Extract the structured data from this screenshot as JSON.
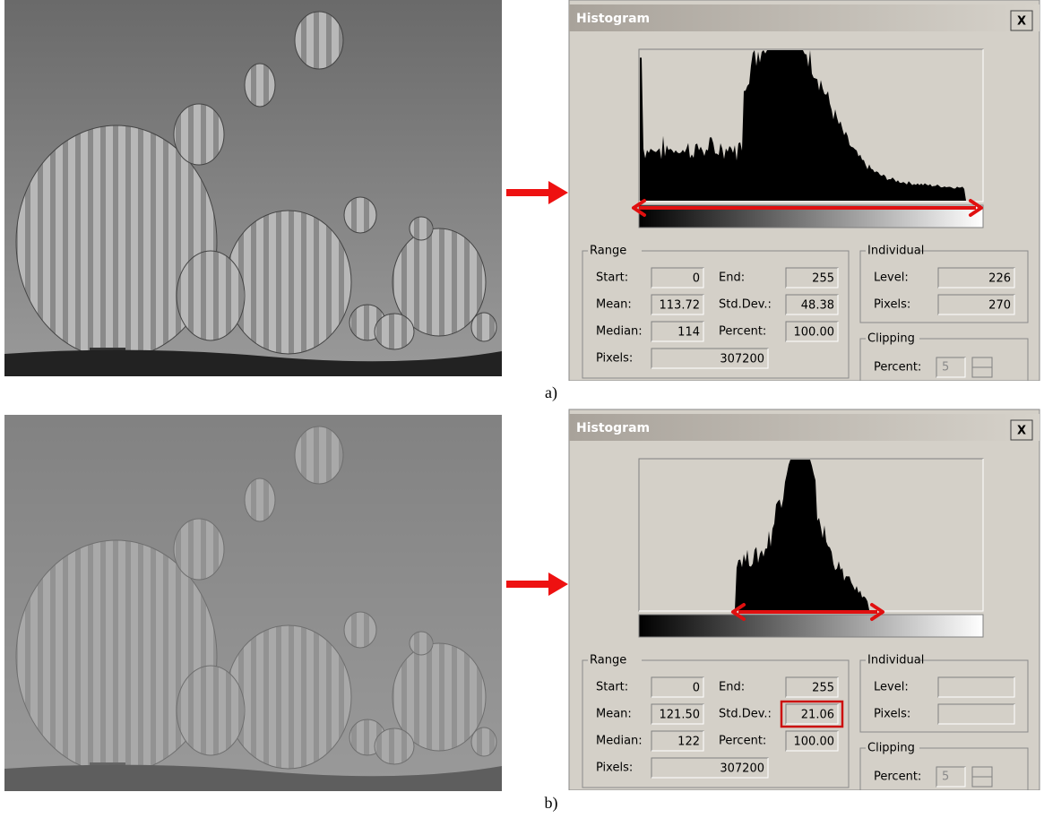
{
  "panels": [
    {
      "label": "a)",
      "dialog": {
        "title": "Histogram",
        "close": "X",
        "range": {
          "title": "Range",
          "fields": [
            {
              "label": "Start:",
              "value": "0"
            },
            {
              "label": "End:",
              "value": "255"
            },
            {
              "label": "Mean:",
              "value": "113.72"
            },
            {
              "label": "Std.Dev.:",
              "value": "48.38"
            },
            {
              "label": "Median:",
              "value": "114"
            },
            {
              "label": "Percent:",
              "value": "100.00"
            },
            {
              "label": "Pixels:",
              "value": "307200"
            }
          ]
        },
        "individual": {
          "title": "Individual",
          "fields": [
            {
              "label": "Level:",
              "value": "226"
            },
            {
              "label": "Pixels:",
              "value": "270"
            }
          ]
        },
        "clipping": {
          "title": "Clipping",
          "label": "Percent:",
          "value": "5"
        }
      }
    },
    {
      "label": "b)",
      "dialog": {
        "title": "Histogram",
        "close": "X",
        "range": {
          "title": "Range",
          "fields": [
            {
              "label": "Start:",
              "value": "0"
            },
            {
              "label": "End:",
              "value": "255"
            },
            {
              "label": "Mean:",
              "value": "121.50"
            },
            {
              "label": "Std.Dev.:",
              "value": "21.06",
              "highlight": true
            },
            {
              "label": "Median:",
              "value": "122"
            },
            {
              "label": "Percent:",
              "value": "100.00"
            },
            {
              "label": "Pixels:",
              "value": "307200"
            }
          ]
        },
        "individual": {
          "title": "Individual",
          "fields": [
            {
              "label": "Level:"
            },
            {
              "label": "Pixels:"
            }
          ]
        },
        "clipping": {
          "title": "Clipping",
          "label": "Percent:",
          "value": "5"
        }
      }
    }
  ]
}
